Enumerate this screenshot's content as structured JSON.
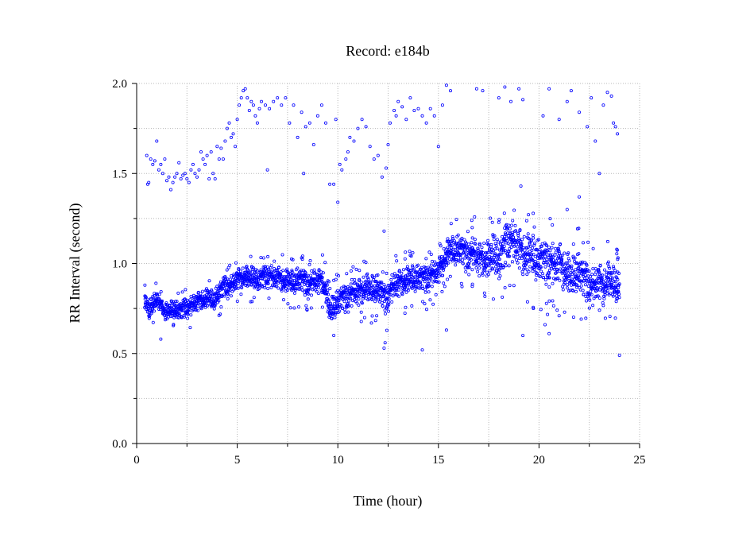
{
  "chart_data": {
    "type": "scatter",
    "title": "Record:  e184b",
    "xlabel": "Time (hour)",
    "ylabel": "RR Interval (second)",
    "xlim": [
      0,
      25
    ],
    "ylim": [
      0.0,
      2.0
    ],
    "x_ticks": [
      "0",
      "5",
      "10",
      "15",
      "20",
      "25"
    ],
    "y_ticks": [
      "0.0",
      "0.5",
      "1.0",
      "1.5",
      "2.0"
    ],
    "grid": true,
    "marker_color": "#0000ff",
    "series": [
      {
        "main_band": [
          [
            0.4,
            0.78
          ],
          [
            0.6,
            0.74
          ],
          [
            0.8,
            0.78
          ],
          [
            1.0,
            0.8
          ],
          [
            1.2,
            0.77
          ],
          [
            1.4,
            0.72
          ],
          [
            1.6,
            0.73
          ],
          [
            1.8,
            0.74
          ],
          [
            2.0,
            0.74
          ],
          [
            2.2,
            0.73
          ],
          [
            2.4,
            0.75
          ],
          [
            2.6,
            0.75
          ],
          [
            2.8,
            0.77
          ],
          [
            3.0,
            0.78
          ],
          [
            3.2,
            0.8
          ],
          [
            3.4,
            0.79
          ],
          [
            3.6,
            0.81
          ],
          [
            3.8,
            0.78
          ],
          [
            4.0,
            0.82
          ],
          [
            4.2,
            0.85
          ],
          [
            4.4,
            0.87
          ],
          [
            4.6,
            0.86
          ],
          [
            4.8,
            0.88
          ],
          [
            5.0,
            0.91
          ],
          [
            5.2,
            0.92
          ],
          [
            5.4,
            0.92
          ],
          [
            5.6,
            0.91
          ],
          [
            5.8,
            0.92
          ],
          [
            6.0,
            0.9
          ],
          [
            6.2,
            0.91
          ],
          [
            6.4,
            0.92
          ],
          [
            6.6,
            0.93
          ],
          [
            6.8,
            0.91
          ],
          [
            7.0,
            0.92
          ],
          [
            7.2,
            0.91
          ],
          [
            7.4,
            0.89
          ],
          [
            7.6,
            0.9
          ],
          [
            7.8,
            0.88
          ],
          [
            8.0,
            0.91
          ],
          [
            8.2,
            0.9
          ],
          [
            8.4,
            0.88
          ],
          [
            8.6,
            0.87
          ],
          [
            8.8,
            0.9
          ],
          [
            9.0,
            0.89
          ],
          [
            9.2,
            0.91
          ],
          [
            9.4,
            0.84
          ],
          [
            9.6,
            0.72
          ],
          [
            9.8,
            0.75
          ],
          [
            10.0,
            0.78
          ],
          [
            10.2,
            0.8
          ],
          [
            10.4,
            0.79
          ],
          [
            10.6,
            0.82
          ],
          [
            10.8,
            0.84
          ],
          [
            11.0,
            0.83
          ],
          [
            11.2,
            0.85
          ],
          [
            11.4,
            0.86
          ],
          [
            11.6,
            0.84
          ],
          [
            11.8,
            0.85
          ],
          [
            12.0,
            0.86
          ],
          [
            12.2,
            0.82
          ],
          [
            12.4,
            0.78
          ],
          [
            12.6,
            0.84
          ],
          [
            12.8,
            0.87
          ],
          [
            13.0,
            0.88
          ],
          [
            13.2,
            0.9
          ],
          [
            13.4,
            0.89
          ],
          [
            13.6,
            0.91
          ],
          [
            13.8,
            0.9
          ],
          [
            14.0,
            0.92
          ],
          [
            14.2,
            0.91
          ],
          [
            14.4,
            0.9
          ],
          [
            14.6,
            0.93
          ],
          [
            14.8,
            0.94
          ],
          [
            15.0,
            0.95
          ],
          [
            15.2,
            1.0
          ],
          [
            15.4,
            1.04
          ],
          [
            15.6,
            1.07
          ],
          [
            15.8,
            1.05
          ],
          [
            16.0,
            1.08
          ],
          [
            16.2,
            1.06
          ],
          [
            16.4,
            1.02
          ],
          [
            16.6,
            1.04
          ],
          [
            16.8,
            1.05
          ],
          [
            17.0,
            1.01
          ],
          [
            17.2,
            1.03
          ],
          [
            17.4,
            1.0
          ],
          [
            17.6,
            1.02
          ],
          [
            17.8,
            1.05
          ],
          [
            18.0,
            1.0
          ],
          [
            18.2,
            1.05
          ],
          [
            18.4,
            1.1
          ],
          [
            18.6,
            1.12
          ],
          [
            18.8,
            1.1
          ],
          [
            19.0,
            1.08
          ],
          [
            19.2,
            1.05
          ],
          [
            19.4,
            1.02
          ],
          [
            19.6,
            1.05
          ],
          [
            19.8,
            1.0
          ],
          [
            20.0,
            1.02
          ],
          [
            20.2,
            1.0
          ],
          [
            20.4,
            0.98
          ],
          [
            20.6,
            1.0
          ],
          [
            20.8,
            0.97
          ],
          [
            21.0,
            1.01
          ],
          [
            21.2,
            0.96
          ],
          [
            21.4,
            0.94
          ],
          [
            21.6,
            0.9
          ],
          [
            21.8,
            0.93
          ],
          [
            22.0,
            0.95
          ],
          [
            22.2,
            0.9
          ],
          [
            22.4,
            0.88
          ],
          [
            22.6,
            0.85
          ],
          [
            22.8,
            0.87
          ],
          [
            23.0,
            0.9
          ],
          [
            23.2,
            0.86
          ],
          [
            23.4,
            0.9
          ],
          [
            23.6,
            0.88
          ],
          [
            23.8,
            0.87
          ],
          [
            24.0,
            0.85
          ]
        ],
        "band_half_width": [
          [
            0.4,
            0.06
          ],
          [
            4.0,
            0.07
          ],
          [
            9.4,
            0.09
          ],
          [
            12.0,
            0.1
          ],
          [
            15.0,
            0.09
          ],
          [
            17.0,
            0.12
          ],
          [
            18.0,
            0.15
          ],
          [
            20.0,
            0.15
          ],
          [
            22.0,
            0.14
          ],
          [
            24.0,
            0.12
          ]
        ],
        "outliers": [
          [
            0.5,
            1.6
          ],
          [
            0.55,
            1.44
          ],
          [
            0.6,
            1.45
          ],
          [
            0.7,
            1.58
          ],
          [
            0.8,
            1.55
          ],
          [
            0.9,
            1.57
          ],
          [
            1.0,
            1.68
          ],
          [
            1.1,
            1.52
          ],
          [
            1.2,
            1.55
          ],
          [
            1.3,
            1.5
          ],
          [
            1.4,
            1.58
          ],
          [
            1.5,
            1.46
          ],
          [
            1.6,
            1.48
          ],
          [
            1.7,
            1.41
          ],
          [
            1.8,
            1.45
          ],
          [
            1.9,
            1.48
          ],
          [
            2.0,
            1.5
          ],
          [
            2.1,
            1.56
          ],
          [
            2.2,
            1.47
          ],
          [
            2.3,
            1.49
          ],
          [
            2.4,
            1.5
          ],
          [
            2.5,
            1.47
          ],
          [
            2.6,
            1.45
          ],
          [
            2.7,
            1.52
          ],
          [
            2.8,
            1.55
          ],
          [
            2.9,
            1.5
          ],
          [
            3.0,
            1.48
          ],
          [
            3.1,
            1.52
          ],
          [
            3.2,
            1.62
          ],
          [
            3.3,
            1.58
          ],
          [
            3.4,
            1.55
          ],
          [
            3.5,
            1.6
          ],
          [
            3.6,
            1.47
          ],
          [
            3.7,
            1.62
          ],
          [
            3.8,
            1.5
          ],
          [
            3.9,
            1.47
          ],
          [
            4.0,
            1.65
          ],
          [
            4.1,
            1.58
          ],
          [
            4.2,
            1.64
          ],
          [
            4.3,
            1.58
          ],
          [
            4.4,
            1.68
          ],
          [
            4.5,
            1.75
          ],
          [
            4.6,
            1.78
          ],
          [
            4.7,
            1.7
          ],
          [
            4.8,
            1.72
          ],
          [
            4.9,
            1.65
          ],
          [
            5.0,
            1.8
          ],
          [
            5.1,
            1.88
          ],
          [
            5.2,
            1.92
          ],
          [
            5.3,
            1.96
          ],
          [
            5.4,
            1.97
          ],
          [
            5.5,
            1.92
          ],
          [
            5.6,
            1.85
          ],
          [
            5.7,
            1.9
          ],
          [
            5.8,
            1.88
          ],
          [
            5.9,
            1.82
          ],
          [
            6.0,
            1.78
          ],
          [
            6.1,
            1.86
          ],
          [
            6.2,
            1.9
          ],
          [
            6.4,
            1.88
          ],
          [
            6.5,
            1.52
          ],
          [
            6.6,
            1.86
          ],
          [
            6.8,
            1.9
          ],
          [
            7.0,
            1.92
          ],
          [
            7.2,
            1.88
          ],
          [
            7.4,
            1.92
          ],
          [
            7.6,
            1.78
          ],
          [
            7.8,
            1.88
          ],
          [
            8.0,
            1.7
          ],
          [
            8.2,
            1.84
          ],
          [
            8.3,
            1.5
          ],
          [
            8.4,
            1.76
          ],
          [
            8.6,
            1.78
          ],
          [
            8.8,
            1.66
          ],
          [
            9.0,
            1.82
          ],
          [
            9.2,
            1.88
          ],
          [
            9.4,
            1.78
          ],
          [
            9.6,
            1.44
          ],
          [
            9.8,
            1.44
          ],
          [
            9.9,
            1.8
          ],
          [
            10.0,
            1.34
          ],
          [
            10.1,
            1.55
          ],
          [
            10.2,
            1.52
          ],
          [
            10.4,
            1.58
          ],
          [
            10.5,
            1.62
          ],
          [
            10.6,
            1.7
          ],
          [
            10.8,
            1.68
          ],
          [
            11.0,
            1.75
          ],
          [
            11.2,
            1.8
          ],
          [
            11.4,
            1.76
          ],
          [
            11.6,
            1.65
          ],
          [
            11.8,
            1.58
          ],
          [
            12.0,
            1.6
          ],
          [
            12.2,
            1.48
          ],
          [
            12.3,
            1.18
          ],
          [
            12.4,
            1.53
          ],
          [
            12.5,
            1.66
          ],
          [
            12.6,
            1.78
          ],
          [
            12.8,
            1.85
          ],
          [
            12.9,
            1.82
          ],
          [
            13.0,
            1.9
          ],
          [
            13.2,
            1.87
          ],
          [
            13.4,
            1.8
          ],
          [
            13.6,
            1.92
          ],
          [
            13.8,
            1.85
          ],
          [
            14.0,
            1.86
          ],
          [
            14.2,
            1.82
          ],
          [
            14.4,
            1.78
          ],
          [
            14.6,
            1.86
          ],
          [
            14.8,
            1.82
          ],
          [
            15.0,
            1.65
          ],
          [
            15.2,
            1.88
          ],
          [
            15.4,
            1.99
          ],
          [
            15.6,
            1.96
          ],
          [
            16.9,
            1.97
          ],
          [
            17.2,
            1.96
          ],
          [
            18.0,
            1.92
          ],
          [
            18.3,
            1.98
          ],
          [
            18.6,
            1.9
          ],
          [
            19.0,
            1.97
          ],
          [
            19.2,
            1.91
          ],
          [
            20.2,
            1.82
          ],
          [
            20.5,
            1.97
          ],
          [
            21.0,
            1.8
          ],
          [
            21.4,
            1.9
          ],
          [
            21.6,
            1.96
          ],
          [
            22.0,
            1.84
          ],
          [
            22.4,
            1.76
          ],
          [
            22.6,
            1.92
          ],
          [
            22.8,
            1.68
          ],
          [
            23.0,
            1.5
          ],
          [
            23.2,
            1.88
          ],
          [
            23.4,
            1.95
          ],
          [
            23.6,
            1.93
          ],
          [
            23.7,
            1.78
          ],
          [
            23.8,
            1.76
          ],
          [
            23.9,
            1.72
          ],
          [
            1.2,
            0.58
          ],
          [
            12.3,
            0.53
          ],
          [
            12.35,
            0.56
          ],
          [
            14.2,
            0.52
          ],
          [
            15.4,
            0.63
          ],
          [
            18.4,
            1.2
          ],
          [
            19.1,
            1.43
          ],
          [
            19.2,
            0.6
          ],
          [
            20.3,
            0.66
          ],
          [
            20.5,
            0.61
          ],
          [
            21.0,
            0.71
          ],
          [
            21.4,
            1.3
          ],
          [
            22.0,
            1.37
          ],
          [
            24.0,
            0.49
          ]
        ]
      }
    ]
  }
}
